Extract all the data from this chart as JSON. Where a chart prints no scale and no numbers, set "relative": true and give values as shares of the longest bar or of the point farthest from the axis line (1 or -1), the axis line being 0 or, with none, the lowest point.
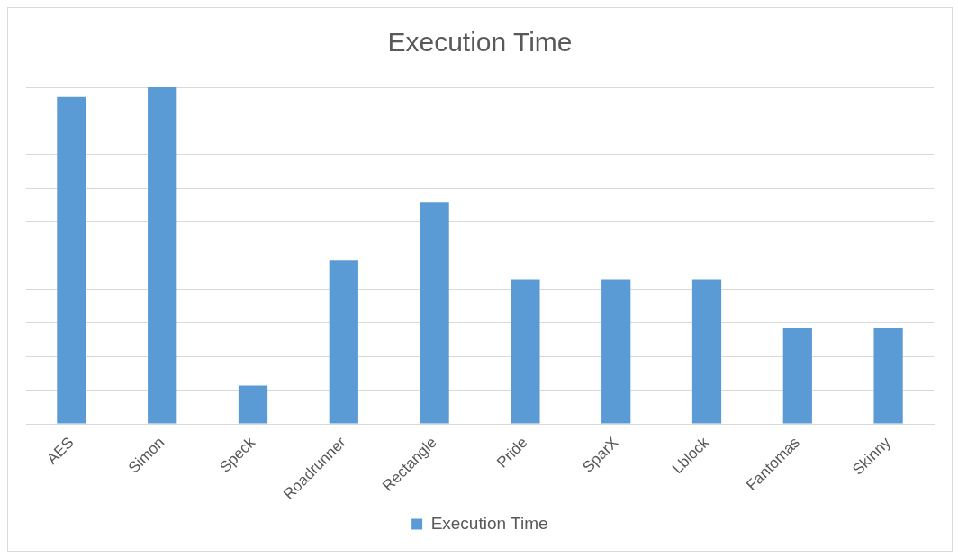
{
  "chart_data": {
    "type": "bar",
    "title": "Execution Time",
    "relative": true,
    "categories": [
      "AES",
      "Simon",
      "Speck",
      "Roadrunner",
      "Rectangle",
      "Pride",
      "SparX",
      "Lblock",
      "Fantomas",
      "Skinny"
    ],
    "series": [
      {
        "name": "Execution Time",
        "color": "#5b9bd5",
        "values": [
          0.971,
          1,
          0.114,
          0.486,
          0.657,
          0.429,
          0.429,
          0.429,
          0.286,
          0.286
        ]
      }
    ],
    "grid": "y",
    "legend": "bottom"
  }
}
